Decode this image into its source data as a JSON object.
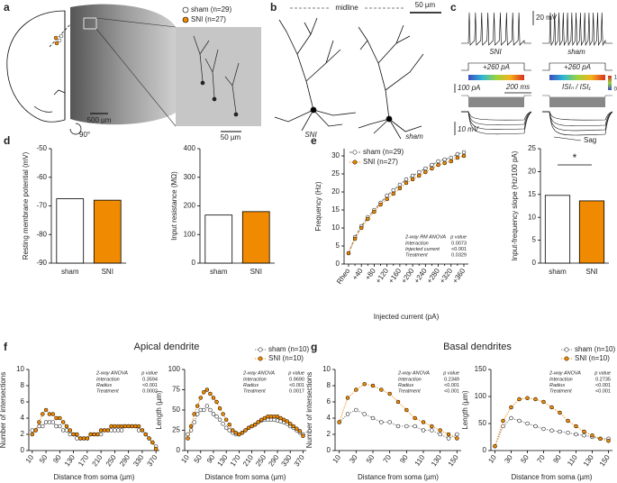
{
  "panels": {
    "a": {
      "label": "a",
      "legend": [
        "sham (n=29)",
        "SNI (n=27)"
      ],
      "scale_slice": "500 µm",
      "rotation": "90°",
      "scale_inset": "50 µm"
    },
    "b": {
      "label": "b",
      "midline": "midline",
      "scale": "50 µm",
      "cells": [
        "SNI",
        "sham"
      ]
    },
    "c": {
      "label": "c",
      "scale_v": "20 mV",
      "traces": [
        "SNI",
        "sham"
      ],
      "current": [
        "+260 pA",
        "+260 pA"
      ],
      "scale_i": "100 pA",
      "scale_t": "200 ms",
      "isi_label": "ISIₙ / ISI₁",
      "colorbar": [
        "1",
        "0"
      ],
      "scale_v2": "10 mV",
      "sag": "Sag"
    },
    "d": {
      "label": "d"
    },
    "e": {
      "label": "e"
    },
    "f": {
      "label": "f",
      "title": "Apical dendrite"
    },
    "g": {
      "label": "g",
      "title": "Basal dendrites"
    }
  },
  "chart_data": [
    {
      "type": "bar",
      "ylabel": "Resting membrane potential (mV)",
      "categories": [
        "sham",
        "SNI"
      ],
      "values": [
        -67.5,
        -68
      ],
      "colors": [
        "#ffffff",
        "#f08a00"
      ],
      "ylim": [
        -90,
        -50
      ],
      "yticks": [
        -90,
        -80,
        -70,
        -60,
        -50
      ]
    },
    {
      "type": "bar",
      "ylabel": "Input resistance (MΩ)",
      "categories": [
        "sham",
        "SNI"
      ],
      "values": [
        168,
        180
      ],
      "colors": [
        "#ffffff",
        "#f08a00"
      ],
      "ylim": [
        0,
        400
      ],
      "yticks": [
        0,
        100,
        200,
        300,
        400
      ]
    },
    {
      "type": "line",
      "ylabel": "Frequency (Hz)",
      "xlabel": "Injected current (pA)",
      "categories": [
        "Rheo",
        null,
        "+40",
        null,
        "+80",
        null,
        "+120",
        null,
        "+160",
        null,
        "+200",
        null,
        "+240",
        null,
        "+280",
        null,
        "+320",
        null,
        "+360"
      ],
      "series": [
        {
          "name": "sham (n=29)",
          "color": "#777777",
          "marker_fill": "#ffffff",
          "line_style": "dashed",
          "values": [
            3,
            7.5,
            10.5,
            13,
            15,
            17,
            19,
            20.5,
            22,
            23.5,
            24.5,
            25.5,
            26.5,
            27.5,
            28.5,
            29,
            29.5,
            30.5,
            31
          ]
        },
        {
          "name": "SNI (n=27)",
          "color": "#f08a00",
          "marker_fill": "#f08a00",
          "line_style": "dotted",
          "values": [
            3,
            7,
            10,
            12.5,
            14.5,
            16.5,
            18,
            19.5,
            21,
            22.5,
            23.5,
            24.5,
            25.5,
            26.5,
            27.5,
            28,
            28.5,
            29.5,
            30
          ]
        }
      ],
      "ylim": [
        0,
        32
      ],
      "yticks": [
        0,
        5,
        10,
        15,
        20,
        25,
        30
      ],
      "legend": "upper left",
      "stats": {
        "corner": "lower right",
        "header": [
          "2-way RM ANOVA",
          "p value"
        ],
        "rows": [
          [
            "Interaction",
            "0.0073"
          ],
          [
            "Injected current",
            "<0.001"
          ],
          [
            "Treatment",
            "0.0329"
          ]
        ]
      }
    },
    {
      "type": "bar",
      "ylabel": "Input-frequency slope (Hz/100 pA)",
      "categories": [
        "sham",
        "SNI"
      ],
      "values": [
        14.8,
        13.6
      ],
      "colors": [
        "#ffffff",
        "#f08a00"
      ],
      "ylim": [
        0,
        25
      ],
      "yticks": [
        0,
        5,
        10,
        15,
        20,
        25
      ],
      "annotation": "*"
    },
    {
      "type": "line",
      "ylabel": "Number of intersections",
      "xlabel": "Distance from soma (µm)",
      "x": [
        10,
        20,
        30,
        40,
        50,
        60,
        70,
        80,
        90,
        100,
        110,
        120,
        130,
        140,
        150,
        160,
        170,
        180,
        190,
        200,
        210,
        220,
        230,
        240,
        250,
        260,
        270,
        280,
        290,
        300,
        310,
        320,
        330,
        340,
        350,
        360,
        370
      ],
      "xlim": [
        0,
        380
      ],
      "xticks": [
        10,
        50,
        90,
        130,
        170,
        210,
        250,
        290,
        330,
        370
      ],
      "series": [
        {
          "color": "#777777",
          "marker_fill": "#ffffff",
          "line_style": "dotted",
          "values": [
            2.5,
            2.5,
            3,
            3,
            3.5,
            3.5,
            3.5,
            3,
            3,
            2.5,
            2.5,
            2,
            2,
            1.5,
            1.5,
            1.5,
            1.5,
            2,
            2,
            2,
            2,
            2.5,
            2.5,
            2.5,
            2.5,
            2.5,
            2.5,
            3,
            3,
            3,
            3,
            2.5,
            2.5,
            2,
            1.5,
            1,
            0.5
          ]
        },
        {
          "color": "#f08a00",
          "marker_fill": "#f08a00",
          "line_style": "dotted",
          "values": [
            2,
            2.5,
            3.5,
            4.5,
            5,
            4.5,
            4.5,
            4,
            4,
            3.5,
            3,
            2.5,
            2,
            2,
            1.5,
            1.5,
            1.5,
            2,
            2,
            2,
            2.5,
            2.5,
            2.5,
            3,
            3,
            3,
            3,
            3,
            3,
            3,
            3,
            3,
            2.5,
            2,
            1.5,
            1,
            0.2
          ]
        }
      ],
      "ylim": [
        0,
        10
      ],
      "yticks": [
        0,
        2,
        4,
        6,
        8,
        10
      ],
      "stats": {
        "corner": "upper right",
        "header": [
          "2-way ANOVA",
          "p value"
        ],
        "rows": [
          [
            "Interaction",
            "0.3594"
          ],
          [
            "Radius",
            "<0.001"
          ],
          [
            "Treatment",
            "0.0002"
          ]
        ]
      }
    },
    {
      "type": "line",
      "ylabel": "Length (µm)",
      "xlabel": "Distance from soma (µm)",
      "x": [
        10,
        20,
        30,
        40,
        50,
        60,
        70,
        80,
        90,
        100,
        110,
        120,
        130,
        140,
        150,
        160,
        170,
        180,
        190,
        200,
        210,
        220,
        230,
        240,
        250,
        260,
        270,
        280,
        290,
        300,
        310,
        320,
        330,
        340,
        350,
        360,
        370
      ],
      "xlim": [
        0,
        380
      ],
      "xticks": [
        10,
        50,
        90,
        130,
        170,
        210,
        250,
        290,
        330,
        370
      ],
      "series": [
        {
          "name": "sham (n=10)",
          "color": "#777777",
          "marker_fill": "#ffffff",
          "line_style": "dotted",
          "values": [
            20,
            25,
            35,
            45,
            50,
            50,
            55,
            50,
            45,
            42,
            38,
            33,
            28,
            25,
            22,
            20,
            20,
            22,
            25,
            28,
            30,
            32,
            35,
            37,
            38,
            38,
            38,
            38,
            37,
            36,
            35,
            33,
            30,
            28,
            25,
            22,
            20
          ]
        },
        {
          "name": "SNI (n=10)",
          "color": "#f08a00",
          "marker_fill": "#f08a00",
          "line_style": "dotted",
          "values": [
            15,
            30,
            45,
            55,
            65,
            72,
            75,
            70,
            65,
            60,
            52,
            45,
            38,
            32,
            25,
            22,
            20,
            22,
            25,
            28,
            30,
            32,
            35,
            38,
            40,
            42,
            42,
            42,
            42,
            40,
            38,
            36,
            33,
            30,
            27,
            24,
            18
          ]
        }
      ],
      "ylim": [
        0,
        100
      ],
      "yticks": [
        0,
        25,
        50,
        75,
        100
      ],
      "legend": "above right",
      "stats": {
        "corner": "upper right",
        "header": [
          "2-way ANOVA",
          "p value"
        ],
        "rows": [
          [
            "Interaction",
            "0.9690"
          ],
          [
            "Radius",
            "<0.001"
          ],
          [
            "Treatment",
            "0.0017"
          ]
        ]
      }
    },
    {
      "type": "line",
      "ylabel": "Number of intersections",
      "xlabel": "Distance from soma (µm)",
      "x": [
        10,
        20,
        30,
        40,
        50,
        60,
        70,
        80,
        90,
        100,
        110,
        120,
        130,
        140,
        150
      ],
      "xlim": [
        5,
        155
      ],
      "xticks": [
        10,
        30,
        50,
        70,
        90,
        110,
        130,
        150
      ],
      "series": [
        {
          "color": "#777777",
          "marker_fill": "#ffffff",
          "line_style": "dotted",
          "values": [
            3.5,
            4.5,
            5,
            4.5,
            4,
            3.5,
            3.5,
            3,
            3,
            3,
            2.5,
            2.5,
            2,
            1.5,
            2
          ]
        },
        {
          "color": "#f08a00",
          "marker_fill": "#f08a00",
          "line_style": "dotted",
          "values": [
            3.5,
            6.5,
            7.5,
            8.2,
            8,
            7.5,
            7,
            6,
            5,
            4,
            3.5,
            3,
            2.5,
            2,
            1.5
          ]
        }
      ],
      "ylim": [
        0,
        10
      ],
      "yticks": [
        0,
        2,
        4,
        6,
        8,
        10
      ],
      "stats": {
        "corner": "upper right",
        "header": [
          "2-way ANOVA",
          "p value"
        ],
        "rows": [
          [
            "Interaction",
            "0.2349"
          ],
          [
            "Radius",
            "<0.001"
          ],
          [
            "Treatment",
            "<0.001"
          ]
        ]
      }
    },
    {
      "type": "line",
      "ylabel": "Length (µm)",
      "xlabel": "Distance from soma (µm)",
      "x": [
        10,
        20,
        30,
        40,
        50,
        60,
        70,
        80,
        90,
        100,
        110,
        120,
        130,
        140,
        150
      ],
      "xlim": [
        5,
        155
      ],
      "xticks": [
        10,
        30,
        50,
        70,
        90,
        110,
        130,
        150
      ],
      "series": [
        {
          "name": "sham (n=10)",
          "color": "#777777",
          "marker_fill": "#ffffff",
          "line_style": "dotted",
          "values": [
            8,
            45,
            60,
            55,
            50,
            45,
            40,
            37,
            35,
            33,
            30,
            28,
            25,
            22,
            22
          ]
        },
        {
          "name": "SNI (n=10)",
          "color": "#f08a00",
          "marker_fill": "#f08a00",
          "line_style": "dotted",
          "values": [
            8,
            55,
            80,
            95,
            97,
            95,
            90,
            80,
            70,
            55,
            45,
            35,
            28,
            22,
            18
          ]
        }
      ],
      "ylim": [
        0,
        150
      ],
      "yticks": [
        0,
        50,
        100,
        150
      ],
      "legend": "above right",
      "stats": {
        "corner": "upper right",
        "header": [
          "2-way ANOVA",
          "p value"
        ],
        "rows": [
          [
            "Interaction",
            "0.2735"
          ],
          [
            "Radius",
            "<0.001"
          ],
          [
            "Treatment",
            "<0.001"
          ]
        ]
      }
    }
  ]
}
